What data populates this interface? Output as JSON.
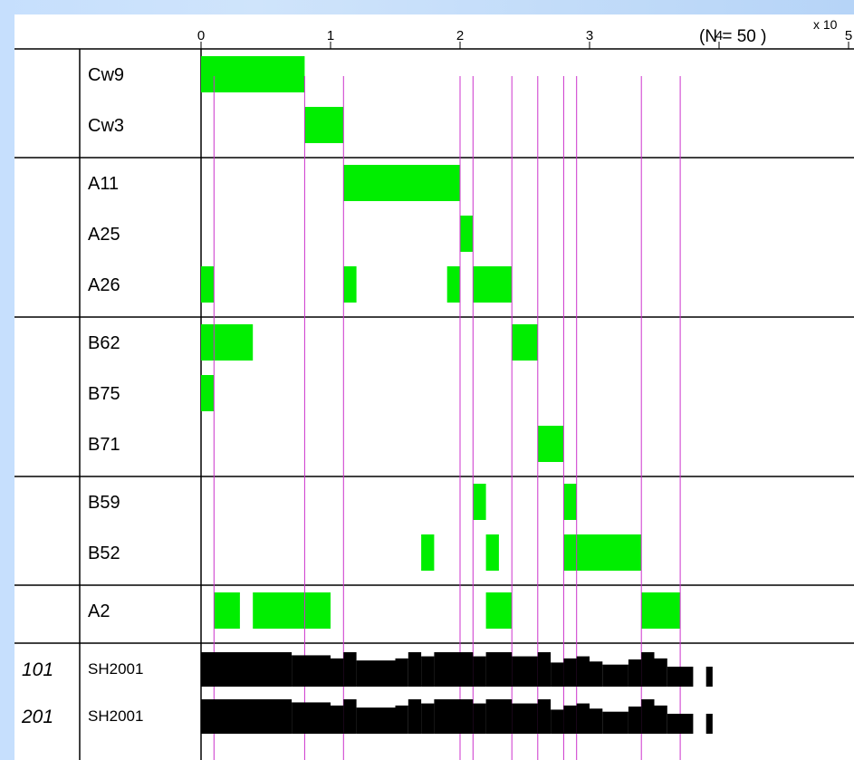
{
  "chart_data": {
    "type": "bar",
    "title": "",
    "n_label": "(N = 50 )",
    "axis_multiplier": "x 10",
    "x_ticks": [
      "0",
      "1",
      "2",
      "3",
      "4",
      "5"
    ],
    "xlim": [
      0,
      5
    ],
    "colors": {
      "segment": "#00ee00",
      "guide": "#cc33cc",
      "sequence": "#000000",
      "grid": "#000000"
    },
    "groups": [
      {
        "rows": [
          {
            "label": "Cw9",
            "segments": [
              [
                0,
                0.8
              ]
            ]
          },
          {
            "label": "Cw3",
            "segments": [
              [
                0.8,
                1.1
              ]
            ]
          }
        ]
      },
      {
        "rows": [
          {
            "label": "A11",
            "segments": [
              [
                1.1,
                2.0
              ]
            ]
          },
          {
            "label": "A25",
            "segments": [
              [
                2.0,
                2.1
              ]
            ]
          },
          {
            "label": "A26",
            "segments": [
              [
                0,
                0.1
              ],
              [
                1.1,
                1.2
              ],
              [
                1.9,
                2.0
              ],
              [
                2.1,
                2.4
              ]
            ]
          }
        ]
      },
      {
        "rows": [
          {
            "label": "B62",
            "segments": [
              [
                0,
                0.4
              ],
              [
                2.4,
                2.6
              ]
            ]
          },
          {
            "label": "B75",
            "segments": [
              [
                0,
                0.1
              ]
            ]
          },
          {
            "label": "B71",
            "segments": [
              [
                2.6,
                2.8
              ]
            ]
          }
        ]
      },
      {
        "rows": [
          {
            "label": "B59",
            "segments": [
              [
                2.1,
                2.2
              ],
              [
                2.8,
                2.9
              ]
            ]
          },
          {
            "label": "B52",
            "segments": [
              [
                1.7,
                1.8
              ],
              [
                2.2,
                2.3
              ],
              [
                2.8,
                3.4
              ]
            ]
          }
        ]
      },
      {
        "rows": [
          {
            "label": "A2",
            "segments": [
              [
                0.1,
                0.3
              ],
              [
                0.4,
                1.0
              ],
              [
                2.2,
                2.4
              ],
              [
                3.4,
                3.7
              ]
            ]
          }
        ]
      }
    ],
    "guide_lines": [
      0.1,
      0.8,
      1.1,
      2.0,
      2.1,
      2.4,
      2.6,
      2.8,
      2.9,
      3.4,
      3.7
    ],
    "sequences": [
      {
        "id": "101",
        "label": "SH2001"
      },
      {
        "id": "201",
        "label": "SH2001"
      }
    ]
  }
}
